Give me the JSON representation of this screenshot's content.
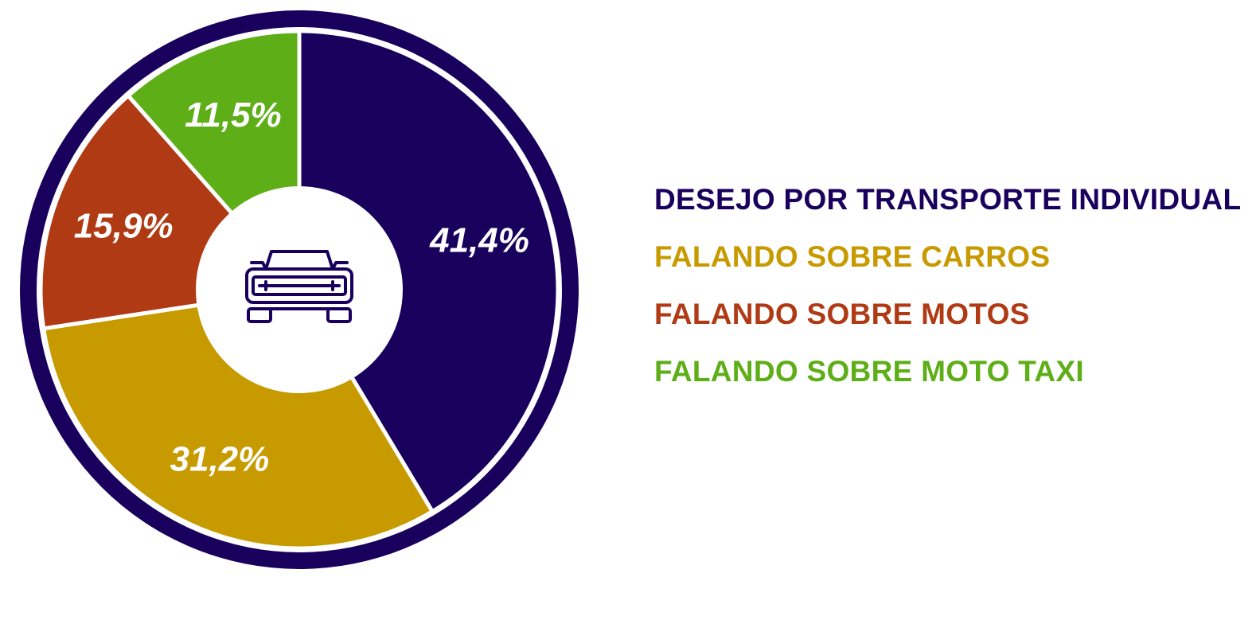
{
  "chart_data": {
    "type": "pie",
    "variant": "donut",
    "title": "",
    "center_icon": "car-front-icon",
    "start_angle_deg": 0,
    "direction": "clockwise",
    "legend_position": "right",
    "ring_color": "#1a005d",
    "slices": [
      {
        "label": "DESEJO POR TRANSPORTE INDIVIDUAL",
        "value": 41.4,
        "value_label": "41,4%",
        "color": "#1a005d"
      },
      {
        "label": "FALANDO SOBRE CARROS",
        "value": 31.2,
        "value_label": "31,2%",
        "color": "#c79a00"
      },
      {
        "label": "FALANDO SOBRE MOTOS",
        "value": 15.9,
        "value_label": "15,9%",
        "color": "#b03a14"
      },
      {
        "label": "FALANDO SOBRE MOTO TAXI",
        "value": 11.5,
        "value_label": "11,5%",
        "color": "#5eae18"
      }
    ]
  }
}
